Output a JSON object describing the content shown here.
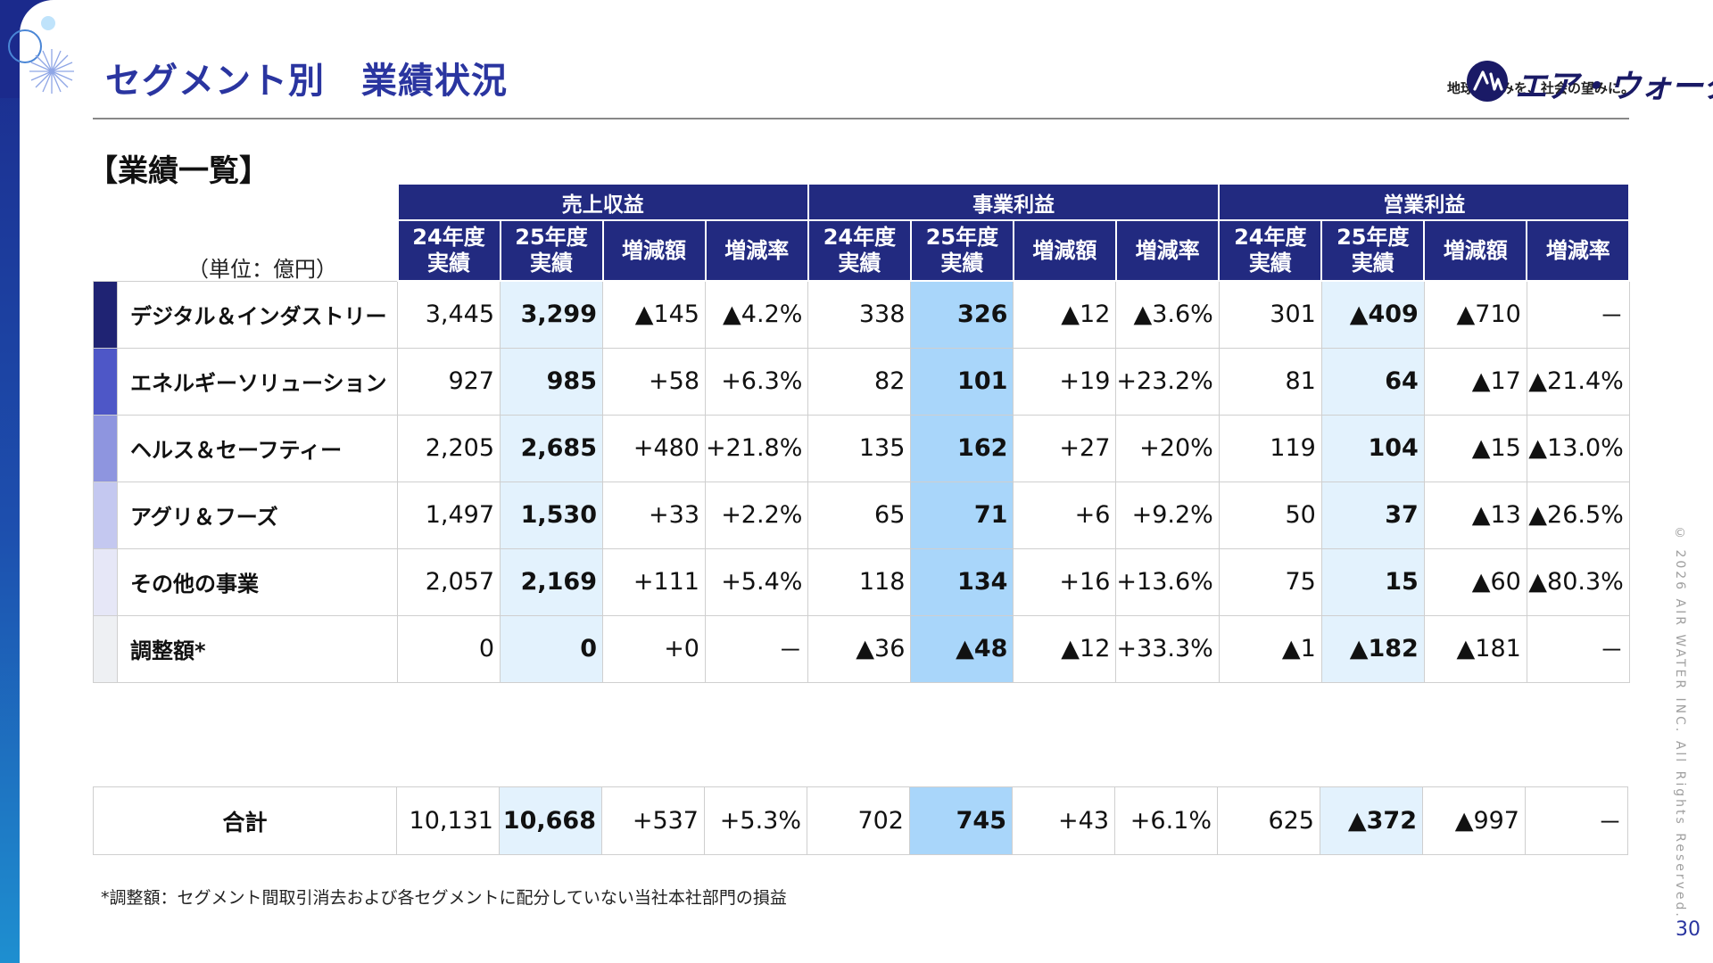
{
  "header": {
    "title": "セグメント別　業績状況",
    "tagline": "地球の恵みを、社会の望みに。",
    "logo_text": "エア・ウォーター"
  },
  "section_title": "【業績一覧】",
  "unit_label": "（単位：億円）",
  "columns": {
    "groups": [
      "売上収益",
      "事業利益",
      "営業利益"
    ],
    "sub": [
      {
        "l1": "24年度",
        "l2": "実績"
      },
      {
        "l1": "25年度",
        "l2": "実績"
      },
      {
        "l1": "増減額",
        "l2": ""
      },
      {
        "l1": "増減率",
        "l2": ""
      }
    ]
  },
  "rows": [
    {
      "name": "デジタル＆インダストリー",
      "color": "#1f2373",
      "values": [
        "3,445",
        "3,299",
        "▲145",
        "▲4.2%",
        "338",
        "326",
        "▲12",
        "▲3.6%",
        "301",
        "▲409",
        "▲710",
        "－"
      ]
    },
    {
      "name": "エネルギーソリューション",
      "color": "#4e57c7",
      "values": [
        "927",
        "985",
        "+58",
        "+6.3%",
        "82",
        "101",
        "+19",
        "+23.2%",
        "81",
        "64",
        "▲17",
        "▲21.4%"
      ]
    },
    {
      "name": "ヘルス＆セーフティー",
      "color": "#8e95df",
      "values": [
        "2,205",
        "2,685",
        "+480",
        "+21.8%",
        "135",
        "162",
        "+27",
        "+20%",
        "119",
        "104",
        "▲15",
        "▲13.0%"
      ]
    },
    {
      "name": "アグリ＆フーズ",
      "color": "#c4c8f0",
      "values": [
        "1,497",
        "1,530",
        "+33",
        "+2.2%",
        "65",
        "71",
        "+6",
        "+9.2%",
        "50",
        "37",
        "▲13",
        "▲26.5%"
      ]
    },
    {
      "name": "その他の事業",
      "color": "#e6e7f7",
      "values": [
        "2,057",
        "2,169",
        "+111",
        "+5.4%",
        "118",
        "134",
        "+16",
        "+13.6%",
        "75",
        "15",
        "▲60",
        "▲80.3%"
      ]
    },
    {
      "name": "調整額*",
      "color": "#eef0f3",
      "values": [
        "0",
        "0",
        "+0",
        "－",
        "▲36",
        "▲48",
        "▲12",
        "+33.3%",
        "▲1",
        "▲182",
        "▲181",
        "－"
      ]
    }
  ],
  "total": {
    "name": "合計",
    "values": [
      "10,131",
      "10,668",
      "+537",
      "+5.3%",
      "702",
      "745",
      "+43",
      "+6.1%",
      "625",
      "▲372",
      "▲997",
      "－"
    ]
  },
  "footnote": "*調整額：セグメント間取引消去および各セグメントに配分していない当社本社部門の損益",
  "copyright": "© 2026 AIR WATER INC. All Rights Reserved.",
  "page_number": "30"
}
